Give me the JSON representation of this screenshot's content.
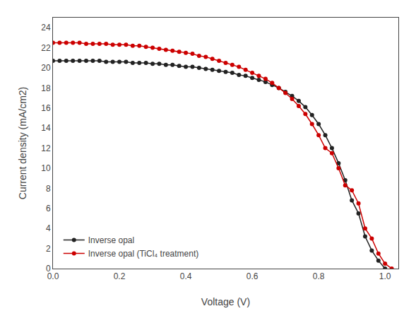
{
  "chart_data": {
    "type": "line",
    "xlabel": "Voltage (V)",
    "ylabel": "Current density (mA/cm2)",
    "xlim": [
      0.0,
      1.04
    ],
    "ylim": [
      0,
      25
    ],
    "xticks": [
      {
        "value": 0.0,
        "label": "0.0"
      },
      0.2,
      0.4,
      0.6,
      0.8,
      {
        "value": 1.0,
        "label": "1.0"
      }
    ],
    "yticks": [
      0,
      2,
      4,
      6,
      8,
      10,
      12,
      14,
      16,
      18,
      20,
      22,
      24
    ],
    "grid": false,
    "legend": "lower left",
    "series": [
      {
        "name": "Inverse opal",
        "color": "#222222",
        "marker": "circle",
        "x": [
          0.0,
          0.02,
          0.04,
          0.06,
          0.08,
          0.1,
          0.12,
          0.14,
          0.16,
          0.18,
          0.2,
          0.22,
          0.24,
          0.26,
          0.28,
          0.3,
          0.32,
          0.34,
          0.36,
          0.38,
          0.4,
          0.42,
          0.44,
          0.46,
          0.48,
          0.5,
          0.52,
          0.54,
          0.56,
          0.58,
          0.6,
          0.62,
          0.64,
          0.66,
          0.68,
          0.7,
          0.72,
          0.74,
          0.76,
          0.78,
          0.8,
          0.82,
          0.84,
          0.86,
          0.88,
          0.9,
          0.92,
          0.94,
          0.96,
          0.98,
          1.0
        ],
        "values": [
          20.7,
          20.7,
          20.7,
          20.7,
          20.7,
          20.7,
          20.7,
          20.7,
          20.6,
          20.6,
          20.6,
          20.6,
          20.5,
          20.5,
          20.5,
          20.4,
          20.4,
          20.3,
          20.3,
          20.2,
          20.1,
          20.1,
          20.0,
          19.9,
          19.8,
          19.7,
          19.6,
          19.5,
          19.3,
          19.2,
          19.0,
          18.8,
          18.6,
          18.3,
          18.0,
          17.6,
          17.2,
          16.7,
          16.1,
          15.3,
          14.4,
          13.3,
          12.0,
          10.5,
          8.8,
          6.8,
          5.5,
          3.2,
          1.8,
          0.8,
          0.0
        ]
      },
      {
        "name": "Inverse opal (TiCl₄ treatment)",
        "color": "#cc0000",
        "marker": "circle",
        "x": [
          0.0,
          0.02,
          0.04,
          0.06,
          0.08,
          0.1,
          0.12,
          0.14,
          0.16,
          0.18,
          0.2,
          0.22,
          0.24,
          0.26,
          0.28,
          0.3,
          0.32,
          0.34,
          0.36,
          0.38,
          0.4,
          0.42,
          0.44,
          0.46,
          0.48,
          0.5,
          0.52,
          0.54,
          0.56,
          0.58,
          0.6,
          0.62,
          0.64,
          0.66,
          0.68,
          0.7,
          0.72,
          0.74,
          0.76,
          0.78,
          0.8,
          0.82,
          0.84,
          0.86,
          0.88,
          0.9,
          0.92,
          0.94,
          0.96,
          0.98,
          1.0,
          1.02
        ],
        "values": [
          22.5,
          22.5,
          22.5,
          22.5,
          22.5,
          22.4,
          22.4,
          22.4,
          22.4,
          22.3,
          22.3,
          22.3,
          22.2,
          22.2,
          22.1,
          22.0,
          21.9,
          21.8,
          21.7,
          21.6,
          21.5,
          21.4,
          21.2,
          21.1,
          20.9,
          20.7,
          20.5,
          20.3,
          20.1,
          19.8,
          19.5,
          19.2,
          18.9,
          18.5,
          18.0,
          17.5,
          16.9,
          16.2,
          15.4,
          14.4,
          13.3,
          12.0,
          11.5,
          10.0,
          8.3,
          7.8,
          6.5,
          4.0,
          3.0,
          1.5,
          0.5,
          0.0
        ]
      }
    ]
  }
}
